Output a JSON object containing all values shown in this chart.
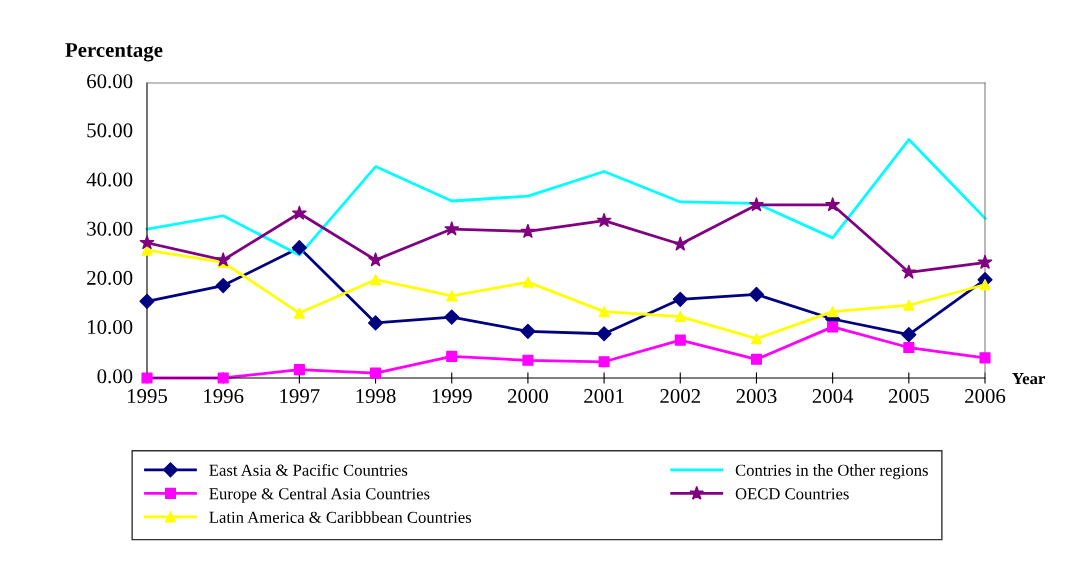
{
  "chart_data": {
    "type": "line",
    "ylabel": "Percentage",
    "xlabel": "Year",
    "categories": [
      "1995",
      "1996",
      "1997",
      "1998",
      "1999",
      "2000",
      "2001",
      "2002",
      "2003",
      "2004",
      "2005",
      "2006"
    ],
    "ylim": [
      0,
      60
    ],
    "yticks": [
      {
        "value": 0,
        "label": "0.00"
      },
      {
        "value": 10,
        "label": "10.00"
      },
      {
        "value": 20,
        "label": "20.00"
      },
      {
        "value": 30,
        "label": "30.00"
      },
      {
        "value": 40,
        "label": "40.00"
      },
      {
        "value": 50,
        "label": "50.00"
      },
      {
        "value": 60,
        "label": "60.00"
      }
    ],
    "grid": false,
    "legend": "bottom",
    "line_style": "solid",
    "series": [
      {
        "name": "East Asia & Pacific Countries",
        "color": "#000080",
        "marker": "diamond",
        "values": [
          15.6,
          18.8,
          26.5,
          11.2,
          12.4,
          9.5,
          9.0,
          16.0,
          17.0,
          12.0,
          8.8,
          20.0
        ]
      },
      {
        "name": "Europe & Central Asia Countries",
        "color": "#ff00ff",
        "marker": "square",
        "values": [
          0,
          0,
          1.7,
          1.0,
          4.4,
          3.6,
          3.3,
          7.7,
          3.8,
          10.4,
          6.2,
          4.1
        ]
      },
      {
        "name": "Latin America & Caribbbean Countries",
        "color": "#ffff00",
        "marker": "triangle",
        "values": [
          26.0,
          23.5,
          13.2,
          20.0,
          16.7,
          19.5,
          13.5,
          12.5,
          8.0,
          13.5,
          14.8,
          19.0
        ]
      },
      {
        "name": "Contries in the Other regions",
        "color": "#00ffff",
        "marker": "none",
        "values": [
          30.3,
          33.0,
          25.0,
          43.0,
          36.0,
          37.0,
          42.0,
          35.8,
          35.5,
          28.5,
          48.5,
          32.5
        ]
      },
      {
        "name": "OECD Countries",
        "color": "#800080",
        "marker": "star",
        "values": [
          27.5,
          24.0,
          33.5,
          24.0,
          30.3,
          29.8,
          32.0,
          27.2,
          35.2,
          35.2,
          21.5,
          23.5
        ]
      }
    ]
  }
}
